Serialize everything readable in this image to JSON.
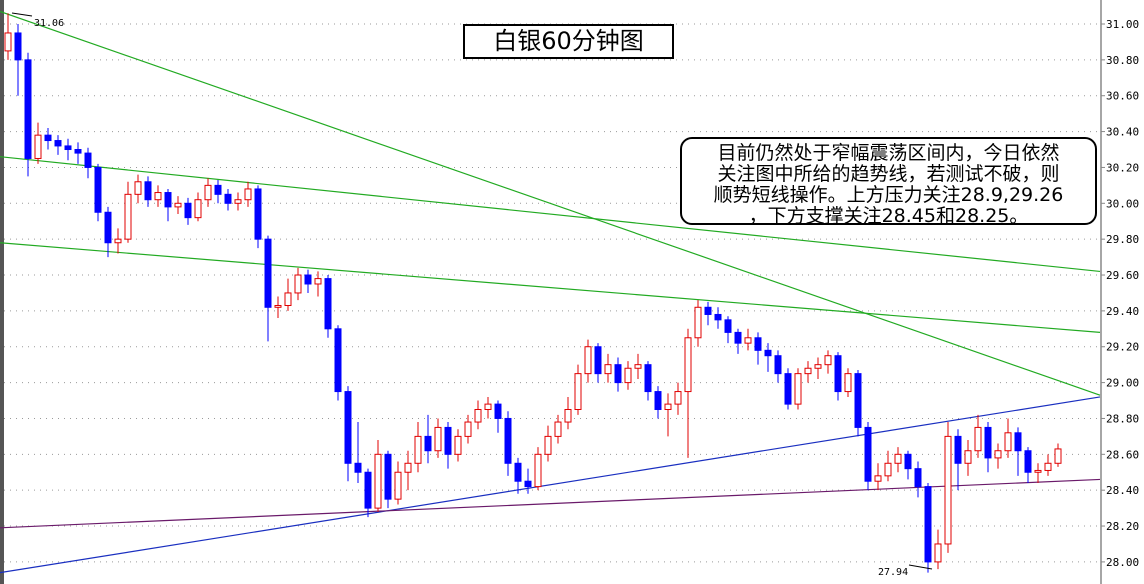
{
  "chart_data": {
    "type": "candlestick",
    "title": "白银60分钟图",
    "annotation": [
      "目前仍然处于窄幅震荡区间内，今日依然",
      "关注图中所给的趋势线，若测试不破，则",
      "顺势短线操作。上方压力关注28.9,29.26",
      "，下方支撑关注28.45和28.25。"
    ],
    "ylim": [
      27.9,
      31.1
    ],
    "yticks": [
      "31.00",
      "30.80",
      "30.60",
      "30.40",
      "30.20",
      "30.00",
      "29.80",
      "29.60",
      "29.40",
      "29.20",
      "29.00",
      "28.80",
      "28.60",
      "28.40",
      "28.20",
      "28.00"
    ],
    "grid": true,
    "high_label": "31.06",
    "low_label": "27.94",
    "colors": {
      "up": "#e00000",
      "down": "#0000ff",
      "grid": "#9a9a9a",
      "trend_green": "#22aa22",
      "trend_blue": "#1a2fc0",
      "trend_purple": "#6a1a6a"
    },
    "candle_format": [
      "open",
      "high",
      "low",
      "close"
    ],
    "candles": [
      [
        30.85,
        31.06,
        30.8,
        30.95
      ],
      [
        30.95,
        31.0,
        30.6,
        30.8
      ],
      [
        30.8,
        30.84,
        30.15,
        30.25
      ],
      [
        30.25,
        30.45,
        30.22,
        30.38
      ],
      [
        30.38,
        30.42,
        30.3,
        30.35
      ],
      [
        30.35,
        30.38,
        30.27,
        30.32
      ],
      [
        30.32,
        30.36,
        30.24,
        30.3
      ],
      [
        30.3,
        30.34,
        30.22,
        30.28
      ],
      [
        30.28,
        30.31,
        30.14,
        30.2
      ],
      [
        30.2,
        30.22,
        29.9,
        29.95
      ],
      [
        29.95,
        29.98,
        29.7,
        29.78
      ],
      [
        29.78,
        29.86,
        29.72,
        29.8
      ],
      [
        29.8,
        30.12,
        29.78,
        30.05
      ],
      [
        30.05,
        30.16,
        30.0,
        30.12
      ],
      [
        30.12,
        30.15,
        29.98,
        30.02
      ],
      [
        30.02,
        30.1,
        29.98,
        30.06
      ],
      [
        30.06,
        30.08,
        29.9,
        29.98
      ],
      [
        29.98,
        30.04,
        29.94,
        30.0
      ],
      [
        30.0,
        30.03,
        29.88,
        29.92
      ],
      [
        29.92,
        30.06,
        29.9,
        30.02
      ],
      [
        30.02,
        30.14,
        29.98,
        30.1
      ],
      [
        30.1,
        30.13,
        30.0,
        30.05
      ],
      [
        30.05,
        30.08,
        29.96,
        30.0
      ],
      [
        30.0,
        30.06,
        29.96,
        30.02
      ],
      [
        30.02,
        30.12,
        29.98,
        30.08
      ],
      [
        30.08,
        30.1,
        29.75,
        29.8
      ],
      [
        29.8,
        29.82,
        29.23,
        29.42
      ],
      [
        29.42,
        29.48,
        29.36,
        29.43
      ],
      [
        29.43,
        29.58,
        29.4,
        29.5
      ],
      [
        29.5,
        29.64,
        29.46,
        29.6
      ],
      [
        29.6,
        29.63,
        29.5,
        29.55
      ],
      [
        29.55,
        29.62,
        29.48,
        29.58
      ],
      [
        29.58,
        29.6,
        29.25,
        29.3
      ],
      [
        29.3,
        29.32,
        28.9,
        28.95
      ],
      [
        28.95,
        28.98,
        28.45,
        28.55
      ],
      [
        28.55,
        28.78,
        28.44,
        28.5
      ],
      [
        28.5,
        28.52,
        28.25,
        28.3
      ],
      [
        28.3,
        28.68,
        28.28,
        28.6
      ],
      [
        28.6,
        28.62,
        28.3,
        28.35
      ],
      [
        28.35,
        28.56,
        28.32,
        28.5
      ],
      [
        28.5,
        28.62,
        28.4,
        28.55
      ],
      [
        28.55,
        28.78,
        28.5,
        28.7
      ],
      [
        28.7,
        28.82,
        28.55,
        28.62
      ],
      [
        28.62,
        28.8,
        28.58,
        28.75
      ],
      [
        28.75,
        28.78,
        28.52,
        28.6
      ],
      [
        28.6,
        28.74,
        28.56,
        28.7
      ],
      [
        28.7,
        28.82,
        28.66,
        28.78
      ],
      [
        28.78,
        28.9,
        28.74,
        28.85
      ],
      [
        28.85,
        28.92,
        28.8,
        28.88
      ],
      [
        28.88,
        28.9,
        28.72,
        28.8
      ],
      [
        28.8,
        28.84,
        28.48,
        28.55
      ],
      [
        28.55,
        28.58,
        28.38,
        28.45
      ],
      [
        28.45,
        28.52,
        28.38,
        28.42
      ],
      [
        28.42,
        28.64,
        28.4,
        28.6
      ],
      [
        28.6,
        28.76,
        28.56,
        28.7
      ],
      [
        28.7,
        28.82,
        28.66,
        28.78
      ],
      [
        28.78,
        28.92,
        28.74,
        28.85
      ],
      [
        28.85,
        29.1,
        28.82,
        29.05
      ],
      [
        29.05,
        29.24,
        29.0,
        29.2
      ],
      [
        29.2,
        29.22,
        29.0,
        29.05
      ],
      [
        29.05,
        29.16,
        29.0,
        29.1
      ],
      [
        29.1,
        29.14,
        28.95,
        29.0
      ],
      [
        29.0,
        29.12,
        28.96,
        29.08
      ],
      [
        29.08,
        29.16,
        29.02,
        29.1
      ],
      [
        29.1,
        29.12,
        28.9,
        28.95
      ],
      [
        28.95,
        28.98,
        28.8,
        28.85
      ],
      [
        28.85,
        28.94,
        28.7,
        28.88
      ],
      [
        28.88,
        29.0,
        28.82,
        28.95
      ],
      [
        28.95,
        29.3,
        28.58,
        29.25
      ],
      [
        29.25,
        29.46,
        29.2,
        29.42
      ],
      [
        29.42,
        29.45,
        29.32,
        29.38
      ],
      [
        29.38,
        29.42,
        29.3,
        29.35
      ],
      [
        29.35,
        29.37,
        29.22,
        29.28
      ],
      [
        29.28,
        29.3,
        29.16,
        29.22
      ],
      [
        29.22,
        29.3,
        29.18,
        29.25
      ],
      [
        29.25,
        29.28,
        29.1,
        29.18
      ],
      [
        29.18,
        29.22,
        29.06,
        29.15
      ],
      [
        29.15,
        29.18,
        29.0,
        29.05
      ],
      [
        29.05,
        29.08,
        28.85,
        28.88
      ],
      [
        28.88,
        29.08,
        28.85,
        29.05
      ],
      [
        29.05,
        29.12,
        29.0,
        29.08
      ],
      [
        29.08,
        29.14,
        29.02,
        29.1
      ],
      [
        29.1,
        29.18,
        29.05,
        29.15
      ],
      [
        29.15,
        29.17,
        28.9,
        28.95
      ],
      [
        28.95,
        29.08,
        28.92,
        29.05
      ],
      [
        29.05,
        29.07,
        28.7,
        28.75
      ],
      [
        28.75,
        28.78,
        28.4,
        28.45
      ],
      [
        28.45,
        28.55,
        28.4,
        28.48
      ],
      [
        28.48,
        28.62,
        28.45,
        28.55
      ],
      [
        28.55,
        28.64,
        28.5,
        28.6
      ],
      [
        28.6,
        28.62,
        28.46,
        28.52
      ],
      [
        28.52,
        28.56,
        28.36,
        28.42
      ],
      [
        28.42,
        28.44,
        27.94,
        28.0
      ],
      [
        28.0,
        28.18,
        27.96,
        28.1
      ],
      [
        28.1,
        28.78,
        28.05,
        28.7
      ],
      [
        28.7,
        28.74,
        28.4,
        28.55
      ],
      [
        28.55,
        28.68,
        28.48,
        28.62
      ],
      [
        28.62,
        28.82,
        28.58,
        28.75
      ],
      [
        28.75,
        28.78,
        28.5,
        28.58
      ],
      [
        28.58,
        28.66,
        28.52,
        28.62
      ],
      [
        28.62,
        28.8,
        28.58,
        28.72
      ],
      [
        28.72,
        28.75,
        28.48,
        28.62
      ],
      [
        28.62,
        28.64,
        28.44,
        28.5
      ],
      [
        28.5,
        28.55,
        28.44,
        28.51
      ],
      [
        28.51,
        28.6,
        28.48,
        28.55
      ],
      [
        28.55,
        28.66,
        28.53,
        28.63
      ]
    ],
    "trendlines": [
      {
        "color": "trend_green",
        "from": [
          -0.8,
          31.07
        ],
        "to": [
          109.2,
          28.93
        ]
      },
      {
        "color": "trend_green",
        "from": [
          -0.8,
          30.26
        ],
        "to": [
          109.2,
          29.62
        ]
      },
      {
        "color": "trend_green",
        "from": [
          -0.8,
          29.78
        ],
        "to": [
          109.2,
          29.28
        ]
      },
      {
        "color": "trend_blue",
        "from": [
          -0.8,
          27.94
        ],
        "to": [
          109.2,
          28.92
        ]
      },
      {
        "color": "trend_purple",
        "from": [
          -0.8,
          28.19
        ],
        "to": [
          109.2,
          28.46
        ]
      }
    ]
  }
}
